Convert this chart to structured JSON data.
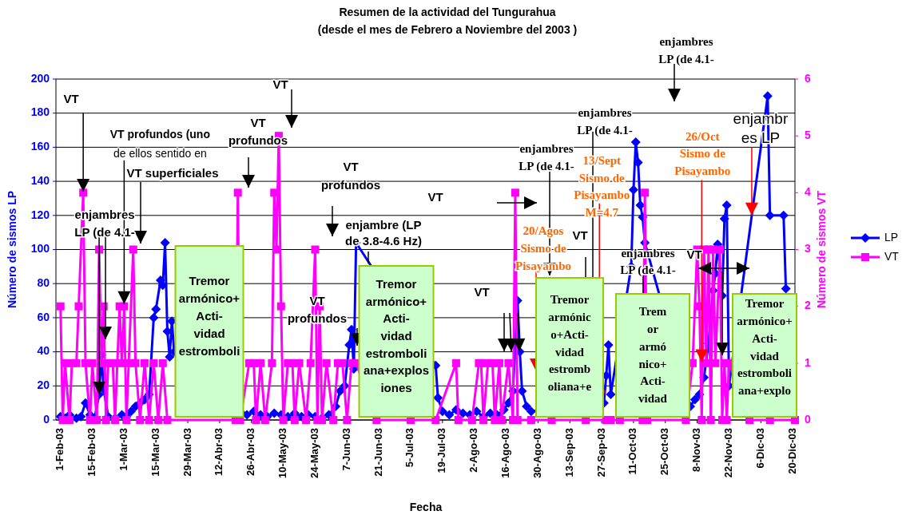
{
  "chart_data": {
    "type": "line",
    "title": "Resumen de la actividad del Tungurahua",
    "subtitle": "(desde el mes de Febrero a Noviembre del 2003 )",
    "xlabel": "Fecha",
    "ylabel": "Número de sismos LP",
    "y2label": "Número de sismos VT",
    "xlim": [
      "2003-01-30",
      "2003-12-21"
    ],
    "xticks": [
      {
        "value": "2003-02-01",
        "label": "1-Feb-03"
      },
      {
        "value": "2003-02-15",
        "label": "15-Feb-03"
      },
      {
        "value": "2003-03-01",
        "label": "1-Mar-03"
      },
      {
        "value": "2003-03-15",
        "label": "15-Mar-03"
      },
      {
        "value": "2003-03-29",
        "label": "29-Mar-03"
      },
      {
        "value": "2003-04-12",
        "label": "12-Abr-03"
      },
      {
        "value": "2003-04-26",
        "label": "26-Abr-03"
      },
      {
        "value": "2003-05-10",
        "label": "10-May-03"
      },
      {
        "value": "2003-05-24",
        "label": "24-May-03"
      },
      {
        "value": "2003-06-07",
        "label": "7-Jun-03"
      },
      {
        "value": "2003-06-21",
        "label": "21-Jun-03"
      },
      {
        "value": "2003-07-05",
        "label": "5-Jul-03"
      },
      {
        "value": "2003-07-19",
        "label": "19-Jul-03"
      },
      {
        "value": "2003-08-02",
        "label": "2-Ago-03"
      },
      {
        "value": "2003-08-16",
        "label": "16-Ago-03"
      },
      {
        "value": "2003-08-30",
        "label": "30-Ago-03"
      },
      {
        "value": "2003-09-13",
        "label": "13-Sep-03"
      },
      {
        "value": "2003-09-27",
        "label": "27-Sep-03"
      },
      {
        "value": "2003-10-11",
        "label": "11-Oct-03"
      },
      {
        "value": "2003-10-25",
        "label": "25-Oct-03"
      },
      {
        "value": "2003-11-08",
        "label": "8-Nov-03"
      },
      {
        "value": "2003-11-22",
        "label": "22-Nov-03"
      },
      {
        "value": "2003-12-06",
        "label": "6-Dic-03"
      },
      {
        "value": "2003-12-20",
        "label": "20-Dic-03"
      }
    ],
    "ylim": [
      0,
      200
    ],
    "yticks": [
      0,
      20,
      40,
      60,
      80,
      100,
      120,
      140,
      160,
      180,
      200
    ],
    "y2lim": [
      0,
      6
    ],
    "y2ticks": [
      0,
      1,
      2,
      3,
      4,
      5,
      6
    ],
    "grid": "y",
    "legend": "right",
    "series": [
      {
        "name": "LP",
        "color": "#0000ff",
        "marker": "diamond",
        "x": [
          "2003-02-01",
          "2003-02-03",
          "2003-02-05",
          "2003-02-08",
          "2003-02-10",
          "2003-02-12",
          "2003-02-14",
          "2003-02-16",
          "2003-02-18",
          "2003-02-19",
          "2003-02-20",
          "2003-02-22",
          "2003-02-25",
          "2003-02-28",
          "2003-03-02",
          "2003-03-04",
          "2003-03-06",
          "2003-03-08",
          "2003-03-10",
          "2003-03-12",
          "2003-03-14",
          "2003-03-15",
          "2003-03-17",
          "2003-03-18",
          "2003-03-19",
          "2003-03-20",
          "2003-03-21",
          "2003-03-22",
          "2003-03-23",
          "2003-04-24",
          "2003-04-27",
          "2003-04-30",
          "2003-05-03",
          "2003-05-06",
          "2003-05-09",
          "2003-05-12",
          "2003-05-15",
          "2003-05-18",
          "2003-05-21",
          "2003-05-24",
          "2003-05-27",
          "2003-05-30",
          "2003-06-02",
          "2003-06-04",
          "2003-06-06",
          "2003-06-08",
          "2003-06-09",
          "2003-06-10",
          "2003-06-11",
          "2003-07-16",
          "2003-07-17",
          "2003-07-19",
          "2003-07-22",
          "2003-07-25",
          "2003-07-28",
          "2003-07-31",
          "2003-08-03",
          "2003-08-06",
          "2003-08-09",
          "2003-08-12",
          "2003-08-15",
          "2003-08-17",
          "2003-08-19",
          "2003-08-21",
          "2003-08-22",
          "2003-08-23",
          "2003-08-25",
          "2003-08-27",
          "2003-09-28",
          "2003-09-29",
          "2003-09-30",
          "2003-10-01",
          "2003-10-10",
          "2003-10-11",
          "2003-10-12",
          "2003-10-13",
          "2003-10-14",
          "2003-10-15",
          "2003-10-16",
          "2003-11-05",
          "2003-11-07",
          "2003-11-09",
          "2003-11-11",
          "2003-11-13",
          "2003-11-15",
          "2003-11-16",
          "2003-11-17",
          "2003-11-19",
          "2003-11-20",
          "2003-11-21",
          "2003-11-22",
          "2003-12-09",
          "2003-12-10",
          "2003-12-16",
          "2003-12-17"
        ],
        "values": [
          2,
          1,
          3,
          1,
          2,
          10,
          3,
          1,
          15,
          38,
          18,
          2,
          1,
          3,
          2,
          5,
          8,
          10,
          12,
          15,
          60,
          65,
          82,
          79,
          104,
          52,
          37,
          58,
          40,
          3,
          5,
          3,
          2,
          4,
          3,
          2,
          4,
          2,
          3,
          2,
          1,
          3,
          8,
          17,
          20,
          44,
          53,
          30,
          104,
          32,
          13,
          5,
          3,
          6,
          4,
          3,
          5,
          2,
          4,
          3,
          6,
          10,
          17,
          70,
          40,
          17,
          8,
          5,
          10,
          26,
          44,
          15,
          90,
          135,
          163,
          151,
          126,
          119,
          104,
          8,
          12,
          15,
          25,
          45,
          76,
          86,
          103,
          73,
          118,
          126,
          20,
          190,
          120,
          120,
          77
        ]
      },
      {
        "name": "VT",
        "color": "#ff00ff",
        "marker": "square",
        "axis": "y2",
        "x": [
          "2003-02-01",
          "2003-02-02",
          "2003-02-03",
          "2003-02-05",
          "2003-02-06",
          "2003-02-08",
          "2003-02-09",
          "2003-02-11",
          "2003-02-12",
          "2003-02-14",
          "2003-02-15",
          "2003-02-17",
          "2003-02-18",
          "2003-02-19",
          "2003-02-20",
          "2003-02-21",
          "2003-02-22",
          "2003-02-24",
          "2003-02-25",
          "2003-02-27",
          "2003-02-28",
          "2003-03-01",
          "2003-03-02",
          "2003-03-03",
          "2003-03-05",
          "2003-03-06",
          "2003-03-08",
          "2003-03-10",
          "2003-03-12",
          "2003-03-14",
          "2003-03-16",
          "2003-03-18",
          "2003-03-20",
          "2003-04-19",
          "2003-04-20",
          "2003-04-21",
          "2003-04-25",
          "2003-04-27",
          "2003-04-28",
          "2003-04-30",
          "2003-05-02",
          "2003-05-05",
          "2003-05-06",
          "2003-05-07",
          "2003-05-08",
          "2003-05-09",
          "2003-05-10",
          "2003-05-12",
          "2003-05-14",
          "2003-05-15",
          "2003-05-17",
          "2003-05-20",
          "2003-05-22",
          "2003-05-24",
          "2003-05-25",
          "2003-05-26",
          "2003-05-27",
          "2003-05-29",
          "2003-06-01",
          "2003-06-03",
          "2003-06-05",
          "2003-06-07",
          "2003-06-09",
          "2003-06-11",
          "2003-06-20",
          "2003-07-05",
          "2003-07-16",
          "2003-07-25",
          "2003-07-26",
          "2003-08-01",
          "2003-08-04",
          "2003-08-05",
          "2003-08-06",
          "2003-08-08",
          "2003-08-10",
          "2003-08-11",
          "2003-08-13",
          "2003-08-14",
          "2003-08-17",
          "2003-08-19",
          "2003-08-20",
          "2003-08-21",
          "2003-08-27",
          "2003-09-05",
          "2003-09-20",
          "2003-09-29",
          "2003-10-01",
          "2003-10-05",
          "2003-10-15",
          "2003-10-16",
          "2003-10-17",
          "2003-11-03",
          "2003-11-06",
          "2003-11-08",
          "2003-11-09",
          "2003-11-10",
          "2003-11-11",
          "2003-11-12",
          "2003-11-13",
          "2003-11-14",
          "2003-11-15",
          "2003-11-16",
          "2003-11-18",
          "2003-11-19",
          "2003-11-20",
          "2003-11-21",
          "2003-11-22",
          "2003-12-01",
          "2003-12-10",
          "2003-12-21"
        ],
        "values": [
          2,
          0,
          1,
          0,
          1,
          1,
          2,
          4,
          1,
          0,
          1,
          0,
          3,
          1,
          2,
          0,
          1,
          1,
          0,
          2,
          1,
          2,
          0,
          1,
          3,
          1,
          0,
          1,
          0,
          1,
          0,
          1,
          0,
          0,
          4,
          0,
          1,
          1,
          0,
          1,
          0,
          1,
          4,
          3,
          5,
          2,
          0,
          1,
          1,
          0,
          1,
          0,
          1,
          3,
          0,
          2,
          0,
          1,
          0,
          1,
          1,
          0,
          1,
          1,
          0,
          0,
          0,
          1,
          0,
          0,
          1,
          1,
          0,
          1,
          1,
          0,
          1,
          0,
          1,
          0,
          4,
          0,
          0,
          0,
          0,
          0,
          0,
          0,
          0,
          4,
          0,
          0,
          1,
          3,
          2,
          0,
          3,
          1,
          3,
          0,
          3,
          1,
          3,
          0,
          1,
          0,
          1,
          0,
          0,
          0
        ]
      }
    ],
    "annotations": [
      {
        "text": "VT",
        "x": "2003-02-11",
        "y": 134
      },
      {
        "text": "VT profundos (uno\nde ellos sentido en",
        "x": "2003-03-01",
        "y": 68
      },
      "VT superficiales",
      {
        "text": "enjambres\nLP (de 4.1-",
        "x": "2003-02-18",
        "y": 15
      },
      "VT",
      "VT\nprofundos",
      "VT\nprofundos",
      "enjambre (LP\nde 3.8-4.6 Hz)",
      "VT\nprofundos",
      "VT",
      "VT",
      "enjambres\nLP (de 4.1-",
      "20/Agos\nSismo de\nPisayambo",
      "VT",
      "enjambres\nLP (de 4.1-",
      {
        "text": "13/Sept\nSismo de\nPisayambo\nM=4.7",
        "x": "2003-09-26",
        "y": 10
      },
      "enjambres\nLP (de 4.1-",
      {
        "text": "26/Oct\nSismo de\nPisayambo",
        "x": "2003-11-10",
        "y": 34
      },
      "enjambres\nLP (de 4.1-",
      {
        "text": "VT",
        "x": "2003-12-01",
        "y": 89
      },
      {
        "text": "enjambr\nes LP",
        "x": "2003-12-02",
        "y": 120
      },
      "Tremor\narmónico+\nActi-\nvidad\nestromboli",
      "Tremor\narmónico+\nActi-\nvidad\nestromboli\nana+explos\niones",
      "Tremor\narmónic\no+Acti-\nvidad\nestromb\noliana+e",
      "Trem\nor\narmó\nnico+\nActi-\nvidad",
      "Tremor\narmónico+\nActi-\nvidad\nestromboli\nana+explo"
    ]
  }
}
